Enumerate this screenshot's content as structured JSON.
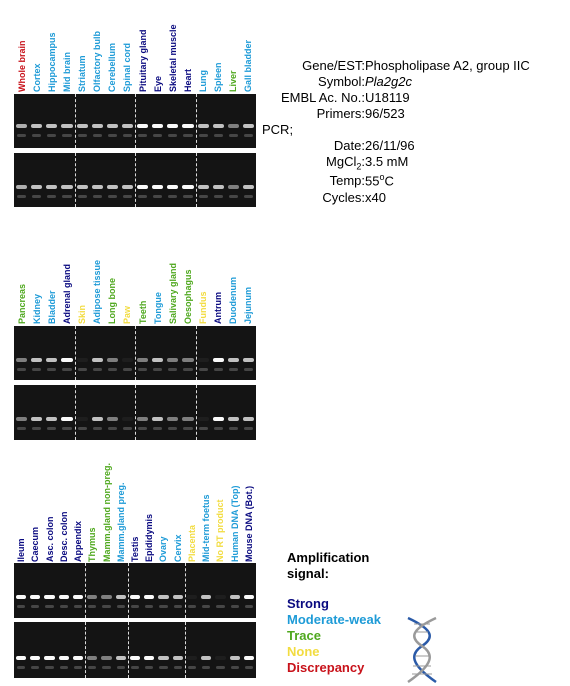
{
  "colors": {
    "strong": "#0a0a80",
    "moderate_weak": "#1e9bd7",
    "trace": "#4fa81e",
    "none": "#f2dc40",
    "discrepancy": "#c8121a"
  },
  "info": {
    "gene_label": "Gene/EST:",
    "gene_value": "Phospholipase A2, group IIC",
    "symbol_label": "Symbol:",
    "symbol_value": "Pla2g2c",
    "embl_label": "EMBL Ac. No.:",
    "embl_value": "U18119",
    "primers_label": "Primers:",
    "primers_value": "96/523",
    "pcr_label": "PCR;",
    "date_label": "Date:",
    "date_value": "26/11/96",
    "mgcl_label": "MgCl",
    "mgcl_sub": "2",
    "mgcl_colon": ":",
    "mgcl_value": "3.5 mM",
    "temp_label": "Temp:",
    "temp_value": "55",
    "temp_sup": "o",
    "temp_unit": "C",
    "cycles_label": "Cycles:",
    "cycles_value": "x40"
  },
  "panels": [
    {
      "lanes": [
        {
          "label": "Whole brain",
          "signal": "discrepancy"
        },
        {
          "label": "Cortex",
          "signal": "moderate_weak"
        },
        {
          "label": "Hippocampus",
          "signal": "moderate_weak"
        },
        {
          "label": "Mid brain",
          "signal": "moderate_weak"
        },
        {
          "label": "Striatum",
          "signal": "moderate_weak"
        },
        {
          "label": "Olfactory bulb",
          "signal": "moderate_weak"
        },
        {
          "label": "Cerebellum",
          "signal": "moderate_weak"
        },
        {
          "label": "Spinal cord",
          "signal": "moderate_weak"
        },
        {
          "label": "Pituitary gland",
          "signal": "strong"
        },
        {
          "label": "Eye",
          "signal": "strong"
        },
        {
          "label": "Skeletal muscle",
          "signal": "strong"
        },
        {
          "label": "Heart",
          "signal": "strong"
        },
        {
          "label": "Lung",
          "signal": "moderate_weak"
        },
        {
          "label": "Spleen",
          "signal": "moderate_weak"
        },
        {
          "label": "Liver",
          "signal": "trace"
        },
        {
          "label": "Gall bladder",
          "signal": "moderate_weak"
        }
      ]
    },
    {
      "lanes": [
        {
          "label": "Pancreas",
          "signal": "trace"
        },
        {
          "label": "Kidney",
          "signal": "moderate_weak"
        },
        {
          "label": "Bladder",
          "signal": "moderate_weak"
        },
        {
          "label": "Adrenal gland",
          "signal": "strong"
        },
        {
          "label": "Skin",
          "signal": "none"
        },
        {
          "label": "Adipose tissue",
          "signal": "moderate_weak"
        },
        {
          "label": "Long bone",
          "signal": "trace"
        },
        {
          "label": "Paw",
          "signal": "none"
        },
        {
          "label": "Teeth",
          "signal": "trace"
        },
        {
          "label": "Tongue",
          "signal": "moderate_weak"
        },
        {
          "label": "Salivary gland",
          "signal": "trace"
        },
        {
          "label": "Oesophagus",
          "signal": "trace"
        },
        {
          "label": "Fundus",
          "signal": "none"
        },
        {
          "label": "Antrum",
          "signal": "strong"
        },
        {
          "label": "Duodenum",
          "signal": "moderate_weak"
        },
        {
          "label": "Jejunum",
          "signal": "moderate_weak"
        }
      ]
    },
    {
      "lanes": [
        {
          "label": "Ileum",
          "signal": "strong"
        },
        {
          "label": "Caecum",
          "signal": "strong"
        },
        {
          "label": "Asc. colon",
          "signal": "strong"
        },
        {
          "label": "Desc. colon",
          "signal": "strong"
        },
        {
          "label": "Appendix",
          "signal": "strong"
        },
        {
          "label": "Thymus",
          "signal": "trace"
        },
        {
          "label": "Mamm.gland non-preg.",
          "signal": "trace"
        },
        {
          "label": "Mamm.gland preg.",
          "signal": "moderate_weak"
        },
        {
          "label": "Testis",
          "signal": "strong"
        },
        {
          "label": "Epididymis",
          "signal": "strong"
        },
        {
          "label": "Ovary",
          "signal": "moderate_weak"
        },
        {
          "label": "Cervix",
          "signal": "moderate_weak"
        },
        {
          "label": "Placenta",
          "signal": "none"
        },
        {
          "label": "Mid-term foetus",
          "signal": "moderate_weak"
        },
        {
          "label": "No RT product",
          "signal": "none"
        },
        {
          "label": "Human DNA (Top)",
          "signal": "moderate_weak"
        },
        {
          "label": "Mouse DNA (Bot.)",
          "signal": "strong"
        }
      ]
    }
  ],
  "legend": {
    "title": "Amplification signal:",
    "items": [
      {
        "key": "strong",
        "label": "Strong"
      },
      {
        "key": "moderate_weak",
        "label": "Moderate-weak"
      },
      {
        "key": "trace",
        "label": "Trace"
      },
      {
        "key": "none",
        "label": "None"
      },
      {
        "key": "discrepancy",
        "label": "Discrepancy"
      }
    ]
  }
}
